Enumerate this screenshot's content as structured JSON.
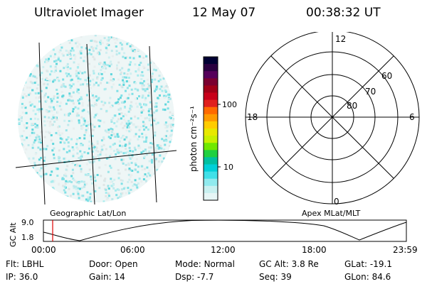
{
  "header": {
    "instrument": "Ultraviolet Imager",
    "date": "12 May 07",
    "time": "00:38:32 UT"
  },
  "colorbar": {
    "label": "photon cm⁻²s⁻¹",
    "ticks": [
      "100",
      "10"
    ],
    "colors": [
      "#000033",
      "#2a0040",
      "#55005a",
      "#7a0030",
      "#a00018",
      "#c8001a",
      "#e0201e",
      "#ff6a00",
      "#ff9a00",
      "#ffcc00",
      "#e8e800",
      "#c8f000",
      "#70e800",
      "#20d040",
      "#00c0a0",
      "#00d0d8",
      "#40e0e8",
      "#90eaee",
      "#c8f0f0",
      "#e6f6f6"
    ]
  },
  "polar": {
    "mlt_labels": {
      "top": "12",
      "left": "18",
      "right": "6",
      "bottom": "0"
    },
    "lat_labels": [
      "60",
      "70",
      "80"
    ]
  },
  "captions": {
    "left": "Geographic Lat/Lon",
    "right": "Apex MLat/MLT"
  },
  "altitude_plot": {
    "axis_label": "GC Alt",
    "y_ticks": [
      "9.0",
      "1.8"
    ],
    "x_ticks": [
      "00:00",
      "06:00",
      "12:00",
      "18:00",
      "23:59"
    ],
    "current_marker_time": "00:38:32"
  },
  "info": {
    "row1": [
      {
        "label": "Flt:",
        "value": "LBHL"
      },
      {
        "label": "Door:",
        "value": "Open"
      },
      {
        "label": "Mode:",
        "value": "Normal"
      },
      {
        "label": "GC Alt:",
        "value": "3.8 Re"
      },
      {
        "label": "GLat:",
        "value": "-19.1"
      }
    ],
    "row2": [
      {
        "label": "IP:",
        "value": "36.0"
      },
      {
        "label": "Gain:",
        "value": "14"
      },
      {
        "label": "Dsp:",
        "value": "-7.7"
      },
      {
        "label": "Seq:",
        "value": "39"
      },
      {
        "label": "GLon:",
        "value": "84.6"
      }
    ]
  }
}
